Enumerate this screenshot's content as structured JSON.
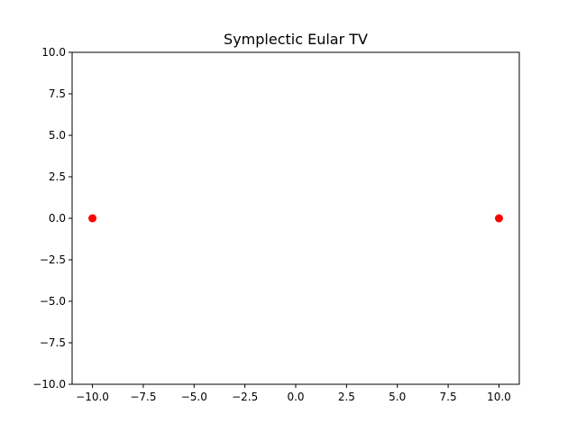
{
  "chart_data": {
    "type": "scatter",
    "title": "Symplectic Eular TV",
    "xlabel": "",
    "ylabel": "",
    "xlim": [
      -11,
      11
    ],
    "ylim": [
      -10,
      10
    ],
    "xticks": [
      -10,
      -7.5,
      -5,
      -2.5,
      0,
      2.5,
      5,
      7.5,
      10
    ],
    "xtick_labels": [
      "−10.0",
      "−7.5",
      "−5.0",
      "−2.5",
      "0.0",
      "2.5",
      "5.0",
      "7.5",
      "10.0"
    ],
    "yticks": [
      -10,
      -7.5,
      -5,
      -2.5,
      0,
      2.5,
      5,
      7.5,
      10
    ],
    "ytick_labels": [
      "−10.0",
      "−7.5",
      "−5.0",
      "−2.5",
      "0.0",
      "2.5",
      "5.0",
      "7.5",
      "10.0"
    ],
    "grid": false,
    "series": [
      {
        "color": "#ff0000",
        "x": [
          -10,
          10
        ],
        "y": [
          0,
          0
        ]
      }
    ]
  }
}
